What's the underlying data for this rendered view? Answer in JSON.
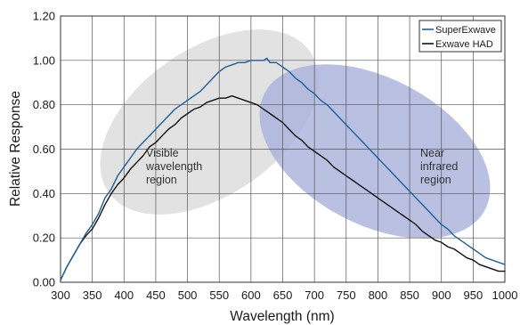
{
  "chart_data": {
    "type": "line",
    "xlabel": "Wavelength (nm)",
    "ylabel": "Relative Response",
    "xlim": [
      300,
      1000
    ],
    "ylim": [
      0,
      1.2
    ],
    "x_ticks": [
      "300",
      "350",
      "400",
      "450",
      "500",
      "550",
      "600",
      "650",
      "700",
      "750",
      "800",
      "850",
      "900",
      "950",
      "1000"
    ],
    "y_ticks": [
      "0.00",
      "0.20",
      "0.40",
      "0.60",
      "0.80",
      "1.00",
      "1.20"
    ],
    "grid": true,
    "legend_position": "top-right",
    "series": [
      {
        "name": "SuperExwave",
        "color": "#1f5f99",
        "points": [
          [
            300,
            0.01
          ],
          [
            310,
            0.07
          ],
          [
            320,
            0.12
          ],
          [
            330,
            0.17
          ],
          [
            340,
            0.22
          ],
          [
            345,
            0.24
          ],
          [
            350,
            0.26
          ],
          [
            360,
            0.31
          ],
          [
            370,
            0.38
          ],
          [
            380,
            0.42
          ],
          [
            390,
            0.48
          ],
          [
            400,
            0.52
          ],
          [
            410,
            0.56
          ],
          [
            420,
            0.6
          ],
          [
            430,
            0.63
          ],
          [
            440,
            0.66
          ],
          [
            450,
            0.69
          ],
          [
            460,
            0.72
          ],
          [
            470,
            0.75
          ],
          [
            480,
            0.78
          ],
          [
            490,
            0.8
          ],
          [
            500,
            0.82
          ],
          [
            510,
            0.84
          ],
          [
            520,
            0.86
          ],
          [
            530,
            0.89
          ],
          [
            540,
            0.92
          ],
          [
            550,
            0.95
          ],
          [
            560,
            0.97
          ],
          [
            570,
            0.98
          ],
          [
            580,
            0.99
          ],
          [
            590,
            0.99
          ],
          [
            600,
            1.0
          ],
          [
            610,
            1.0
          ],
          [
            620,
            1.0
          ],
          [
            625,
            1.01
          ],
          [
            630,
            0.99
          ],
          [
            640,
            0.99
          ],
          [
            650,
            0.97
          ],
          [
            660,
            0.95
          ],
          [
            670,
            0.92
          ],
          [
            680,
            0.9
          ],
          [
            690,
            0.87
          ],
          [
            700,
            0.85
          ],
          [
            710,
            0.82
          ],
          [
            720,
            0.8
          ],
          [
            730,
            0.77
          ],
          [
            740,
            0.74
          ],
          [
            750,
            0.71
          ],
          [
            760,
            0.68
          ],
          [
            770,
            0.65
          ],
          [
            780,
            0.62
          ],
          [
            790,
            0.59
          ],
          [
            800,
            0.56
          ],
          [
            810,
            0.53
          ],
          [
            820,
            0.5
          ],
          [
            830,
            0.47
          ],
          [
            840,
            0.44
          ],
          [
            850,
            0.41
          ],
          [
            860,
            0.38
          ],
          [
            870,
            0.35
          ],
          [
            880,
            0.32
          ],
          [
            890,
            0.29
          ],
          [
            900,
            0.26
          ],
          [
            910,
            0.24
          ],
          [
            920,
            0.21
          ],
          [
            930,
            0.19
          ],
          [
            940,
            0.17
          ],
          [
            950,
            0.15
          ],
          [
            960,
            0.13
          ],
          [
            970,
            0.11
          ],
          [
            980,
            0.1
          ],
          [
            990,
            0.09
          ],
          [
            1000,
            0.08
          ]
        ]
      },
      {
        "name": "Exwave HAD",
        "color": "#111111",
        "points": [
          [
            300,
            0.01
          ],
          [
            310,
            0.07
          ],
          [
            320,
            0.12
          ],
          [
            330,
            0.17
          ],
          [
            340,
            0.21
          ],
          [
            350,
            0.24
          ],
          [
            360,
            0.29
          ],
          [
            370,
            0.35
          ],
          [
            380,
            0.4
          ],
          [
            390,
            0.44
          ],
          [
            400,
            0.47
          ],
          [
            410,
            0.51
          ],
          [
            420,
            0.54
          ],
          [
            430,
            0.57
          ],
          [
            440,
            0.61
          ],
          [
            450,
            0.63
          ],
          [
            460,
            0.66
          ],
          [
            470,
            0.69
          ],
          [
            480,
            0.71
          ],
          [
            490,
            0.74
          ],
          [
            500,
            0.76
          ],
          [
            510,
            0.78
          ],
          [
            520,
            0.79
          ],
          [
            530,
            0.81
          ],
          [
            540,
            0.82
          ],
          [
            550,
            0.83
          ],
          [
            560,
            0.83
          ],
          [
            570,
            0.84
          ],
          [
            580,
            0.83
          ],
          [
            590,
            0.82
          ],
          [
            600,
            0.81
          ],
          [
            610,
            0.8
          ],
          [
            620,
            0.78
          ],
          [
            630,
            0.76
          ],
          [
            640,
            0.74
          ],
          [
            650,
            0.72
          ],
          [
            660,
            0.69
          ],
          [
            670,
            0.66
          ],
          [
            680,
            0.64
          ],
          [
            690,
            0.61
          ],
          [
            700,
            0.59
          ],
          [
            710,
            0.57
          ],
          [
            720,
            0.55
          ],
          [
            730,
            0.52
          ],
          [
            740,
            0.5
          ],
          [
            750,
            0.48
          ],
          [
            760,
            0.46
          ],
          [
            770,
            0.44
          ],
          [
            780,
            0.42
          ],
          [
            790,
            0.4
          ],
          [
            800,
            0.38
          ],
          [
            810,
            0.36
          ],
          [
            820,
            0.34
          ],
          [
            830,
            0.32
          ],
          [
            840,
            0.3
          ],
          [
            850,
            0.28
          ],
          [
            860,
            0.26
          ],
          [
            870,
            0.23
          ],
          [
            880,
            0.21
          ],
          [
            890,
            0.19
          ],
          [
            900,
            0.18
          ],
          [
            910,
            0.16
          ],
          [
            920,
            0.15
          ],
          [
            930,
            0.13
          ],
          [
            940,
            0.11
          ],
          [
            950,
            0.1
          ],
          [
            960,
            0.08
          ],
          [
            970,
            0.07
          ],
          [
            980,
            0.06
          ],
          [
            990,
            0.05
          ],
          [
            1000,
            0.05
          ]
        ]
      }
    ],
    "annotations": [
      {
        "id": "visible",
        "lines": [
          "Visible",
          "wavelength",
          "region"
        ],
        "fill": "#dcdcdc"
      },
      {
        "id": "nir",
        "lines": [
          "Near",
          "infrared",
          "region"
        ],
        "fill": "#aab2dc"
      }
    ]
  }
}
